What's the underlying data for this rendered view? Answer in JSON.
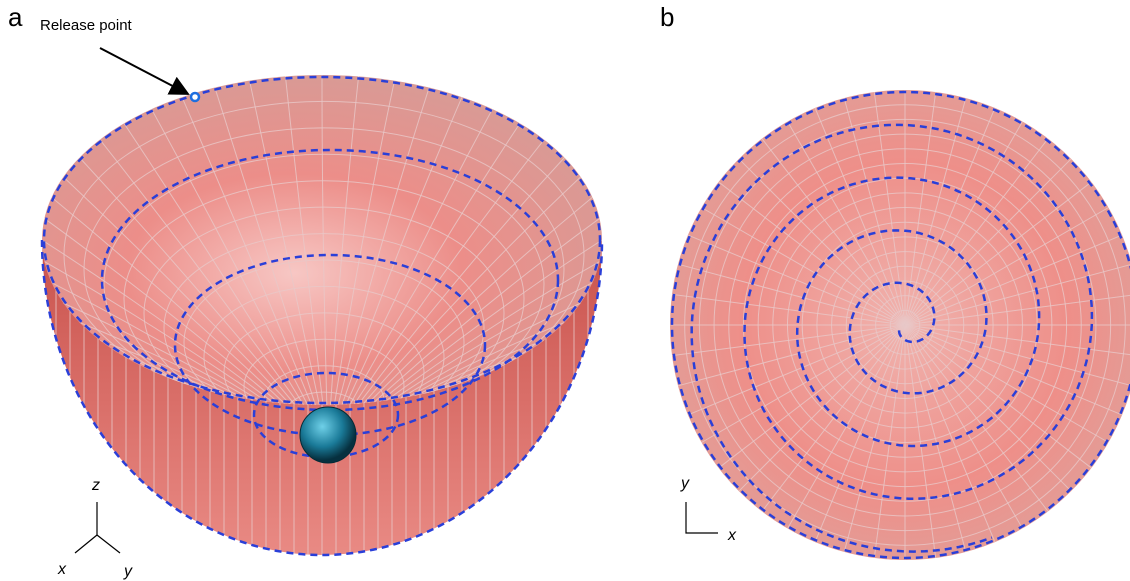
{
  "panels": [
    {
      "label": "a",
      "annotation": "Release point",
      "axes": [
        "z",
        "x",
        "y"
      ]
    },
    {
      "label": "b",
      "axes": [
        "y",
        "x"
      ]
    }
  ]
}
